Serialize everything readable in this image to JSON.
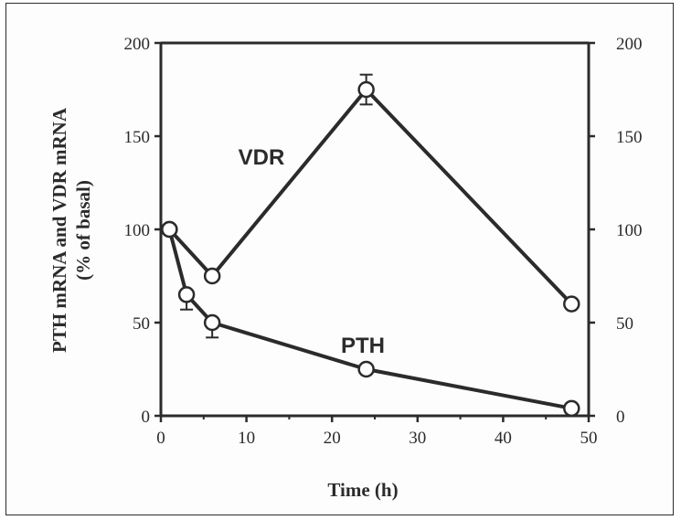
{
  "chart_data": {
    "type": "line",
    "xlabel": "Time  (h)",
    "ylabel_line1": "PTH mRNA and VDR mRNA",
    "ylabel_line2": "(% of basal)",
    "xlim": [
      0,
      50
    ],
    "ylim": [
      0,
      200
    ],
    "x_ticks": [
      "0",
      "10",
      "20",
      "30",
      "40",
      "50"
    ],
    "y_ticks": [
      "0",
      "50",
      "100",
      "150",
      "200"
    ],
    "y_right_ticks": [
      "0",
      "50",
      "100",
      "150",
      "200"
    ],
    "grid": false,
    "series": [
      {
        "name": "VDR",
        "x": [
          1,
          6,
          24,
          48
        ],
        "y": [
          100,
          75,
          175,
          60
        ],
        "error": [
          0,
          0,
          8,
          0
        ]
      },
      {
        "name": "PTH",
        "x": [
          1,
          3,
          6,
          24,
          48
        ],
        "y": [
          100,
          65,
          50,
          25,
          4
        ],
        "error": [
          0,
          8,
          8,
          0,
          0
        ]
      }
    ]
  }
}
